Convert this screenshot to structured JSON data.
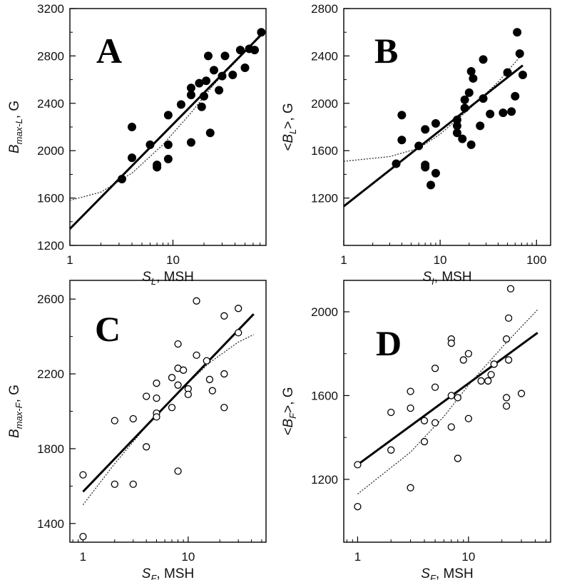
{
  "chart_data": [
    {
      "panel": "A",
      "type": "scatter",
      "marker": "filled",
      "xscale": "log",
      "xlim": [
        1,
        80
      ],
      "ylim": [
        1200,
        3200
      ],
      "xticks": [
        1,
        10
      ],
      "xtick_labels": [
        "1",
        "10"
      ],
      "yticks": [
        1200,
        1600,
        2000,
        2400,
        2800,
        3200
      ],
      "ytick_labels": [
        "1200",
        "1600",
        "2000",
        "2400",
        "2800",
        "3200"
      ],
      "xlabel": {
        "main": "S",
        "sub": "L",
        "rest": ", MSH"
      },
      "ylabel": {
        "main": "B",
        "sub": "max-L",
        "rest": ", G"
      },
      "points": [
        [
          3.2,
          1760
        ],
        [
          4,
          2200
        ],
        [
          4,
          1940
        ],
        [
          6,
          2050
        ],
        [
          7,
          1880
        ],
        [
          7,
          1860
        ],
        [
          9,
          2300
        ],
        [
          9,
          2050
        ],
        [
          9,
          1930
        ],
        [
          12,
          2390
        ],
        [
          15,
          2530
        ],
        [
          15,
          2470
        ],
        [
          15,
          2070
        ],
        [
          18,
          2570
        ],
        [
          19,
          2370
        ],
        [
          20,
          2460
        ],
        [
          21,
          2590
        ],
        [
          22,
          2800
        ],
        [
          23,
          2150
        ],
        [
          25,
          2680
        ],
        [
          28,
          2510
        ],
        [
          30,
          2630
        ],
        [
          32,
          2800
        ],
        [
          38,
          2640
        ],
        [
          45,
          2850
        ],
        [
          50,
          2700
        ],
        [
          55,
          2860
        ],
        [
          62,
          2850
        ],
        [
          72,
          3000
        ]
      ],
      "fit_line": [
        [
          1,
          1340
        ],
        [
          78,
          3010
        ]
      ],
      "fit_curve": [
        [
          1,
          1580
        ],
        [
          2,
          1650
        ],
        [
          4,
          1810
        ],
        [
          8,
          2050
        ],
        [
          15,
          2320
        ],
        [
          25,
          2560
        ],
        [
          45,
          2790
        ],
        [
          78,
          3030
        ]
      ]
    },
    {
      "panel": "B",
      "type": "scatter",
      "marker": "filled",
      "xscale": "log",
      "xlim": [
        1,
        140
      ],
      "ylim": [
        800,
        2800
      ],
      "xticks": [
        1,
        10,
        100
      ],
      "xtick_labels": [
        "1",
        "10",
        "100"
      ],
      "yticks": [
        1200,
        1600,
        2000,
        2400,
        2800
      ],
      "ytick_labels": [
        "1200",
        "1600",
        "2000",
        "2400",
        "2800"
      ],
      "xlabel": {
        "main": "S",
        "sub": "I",
        "rest": ", MSH"
      },
      "ylabel": {
        "main": "<B",
        "sub": "L",
        "rest": ">, G"
      },
      "points": [
        [
          3.5,
          1490
        ],
        [
          4,
          1900
        ],
        [
          4,
          1690
        ],
        [
          6,
          1640
        ],
        [
          7,
          1780
        ],
        [
          7,
          1480
        ],
        [
          7,
          1460
        ],
        [
          8,
          1310
        ],
        [
          9,
          1410
        ],
        [
          9,
          1830
        ],
        [
          15,
          1860
        ],
        [
          15,
          1810
        ],
        [
          15,
          1750
        ],
        [
          17,
          1700
        ],
        [
          18,
          2030
        ],
        [
          18,
          1960
        ],
        [
          20,
          2090
        ],
        [
          21,
          2270
        ],
        [
          21,
          1650
        ],
        [
          22,
          2210
        ],
        [
          26,
          1810
        ],
        [
          28,
          2370
        ],
        [
          28,
          2040
        ],
        [
          33,
          1910
        ],
        [
          45,
          1920
        ],
        [
          50,
          2260
        ],
        [
          55,
          1930
        ],
        [
          60,
          2060
        ],
        [
          63,
          2600
        ],
        [
          67,
          2420
        ],
        [
          72,
          2240
        ]
      ],
      "fit_line": [
        [
          1,
          1130
        ],
        [
          72,
          2320
        ]
      ],
      "fit_curve": [
        [
          1,
          1510
        ],
        [
          3,
          1550
        ],
        [
          6,
          1620
        ],
        [
          10,
          1740
        ],
        [
          20,
          1950
        ],
        [
          40,
          2180
        ],
        [
          72,
          2420
        ]
      ]
    },
    {
      "panel": "C",
      "type": "scatter",
      "marker": "open",
      "xscale": "log",
      "xlim": [
        0.75,
        55
      ],
      "ylim": [
        1300,
        2700
      ],
      "xticks": [
        1,
        10
      ],
      "xtick_labels": [
        "1",
        "10"
      ],
      "yticks": [
        1400,
        1800,
        2200,
        2600
      ],
      "ytick_labels": [
        "1400",
        "1800",
        "2200",
        "2600"
      ],
      "xlabel": {
        "main": "S",
        "sub": "F",
        "rest": ", MSH"
      },
      "ylabel": {
        "main": "B",
        "sub": "max-F",
        "rest": ", G"
      },
      "points": [
        [
          1,
          1660
        ],
        [
          1,
          1330
        ],
        [
          2,
          1950
        ],
        [
          2,
          1610
        ],
        [
          3,
          1960
        ],
        [
          3,
          1610
        ],
        [
          4,
          2080
        ],
        [
          4,
          1810
        ],
        [
          5,
          2150
        ],
        [
          5,
          2070
        ],
        [
          5,
          1990
        ],
        [
          5,
          1970
        ],
        [
          7,
          2180
        ],
        [
          7,
          2020
        ],
        [
          8,
          2230
        ],
        [
          8,
          2360
        ],
        [
          8,
          2140
        ],
        [
          8,
          1680
        ],
        [
          9,
          2220
        ],
        [
          10,
          2120
        ],
        [
          10,
          2090
        ],
        [
          12,
          2300
        ],
        [
          12,
          2590
        ],
        [
          15,
          2270
        ],
        [
          16,
          2170
        ],
        [
          17,
          2110
        ],
        [
          22,
          2510
        ],
        [
          22,
          2200
        ],
        [
          22,
          2020
        ],
        [
          30,
          2550
        ],
        [
          30,
          2420
        ]
      ],
      "fit_line": [
        [
          1,
          1570
        ],
        [
          42,
          2520
        ]
      ],
      "fit_curve": [
        [
          1,
          1500
        ],
        [
          2,
          1720
        ],
        [
          4,
          1920
        ],
        [
          8,
          2100
        ],
        [
          16,
          2260
        ],
        [
          30,
          2370
        ],
        [
          42,
          2410
        ]
      ]
    },
    {
      "panel": "D",
      "type": "scatter",
      "marker": "open",
      "xscale": "log",
      "xlim": [
        0.75,
        55
      ],
      "ylim": [
        900,
        2150
      ],
      "xticks": [
        1,
        10
      ],
      "xtick_labels": [
        "1",
        "10"
      ],
      "yticks": [
        1200,
        1600,
        2000
      ],
      "ytick_labels": [
        "1200",
        "1600",
        "2000"
      ],
      "xlabel": {
        "main": "S",
        "sub": "F",
        "rest": ", MSH"
      },
      "ylabel": {
        "main": "<B",
        "sub": "F",
        "rest": ">, G"
      },
      "points": [
        [
          1,
          1270
        ],
        [
          1,
          1070
        ],
        [
          2,
          1520
        ],
        [
          2,
          1340
        ],
        [
          3,
          1620
        ],
        [
          3,
          1540
        ],
        [
          3,
          1160
        ],
        [
          4,
          1480
        ],
        [
          4,
          1380
        ],
        [
          5,
          1730
        ],
        [
          5,
          1640
        ],
        [
          5,
          1470
        ],
        [
          7,
          1870
        ],
        [
          7,
          1850
        ],
        [
          7,
          1600
        ],
        [
          7,
          1450
        ],
        [
          8,
          1590
        ],
        [
          8,
          1300
        ],
        [
          9,
          1770
        ],
        [
          10,
          1800
        ],
        [
          10,
          1490
        ],
        [
          13,
          1670
        ],
        [
          15,
          1670
        ],
        [
          16,
          1700
        ],
        [
          17,
          1750
        ],
        [
          22,
          1870
        ],
        [
          22,
          1590
        ],
        [
          22,
          1550
        ],
        [
          23,
          1970
        ],
        [
          23,
          1770
        ],
        [
          24,
          2110
        ],
        [
          30,
          1610
        ]
      ],
      "fit_line": [
        [
          1,
          1270
        ],
        [
          42,
          1900
        ]
      ],
      "fit_curve": [
        [
          1,
          1130
        ],
        [
          3,
          1330
        ],
        [
          6,
          1500
        ],
        [
          10,
          1650
        ],
        [
          20,
          1830
        ],
        [
          42,
          2010
        ]
      ]
    }
  ],
  "panel_letters": [
    "A",
    "B",
    "C",
    "D"
  ]
}
